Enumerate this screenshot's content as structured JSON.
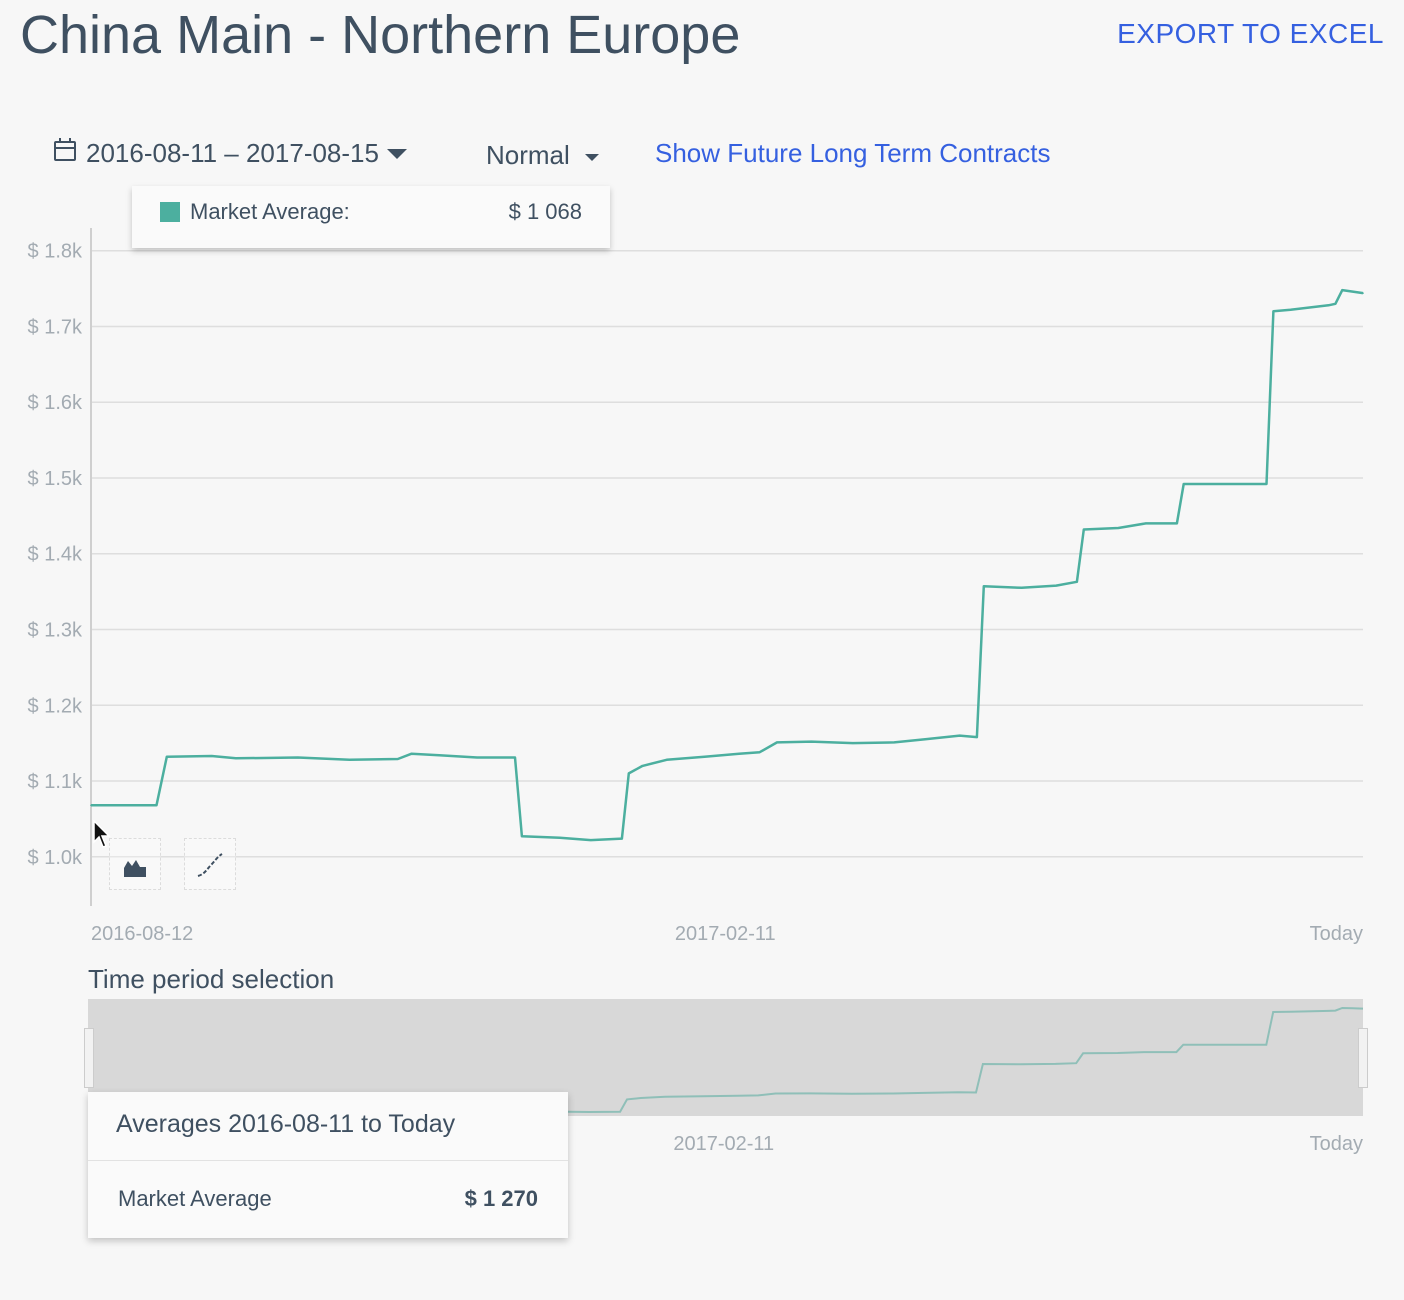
{
  "header": {
    "title": "China Main - Northern Europe",
    "export_label": "EXPORT TO EXCEL"
  },
  "controls": {
    "date_range": "2016-08-11 – 2017-08-15",
    "mode": "Normal",
    "future_link": "Show Future Long Term Contracts"
  },
  "tooltip": {
    "label": "Market Average:",
    "value": "$ 1 068",
    "color": "#4caf9f"
  },
  "navigator": {
    "label": "Time period selection",
    "x_labels": [
      "2017-02-11",
      "Today"
    ]
  },
  "averages": {
    "title": "Averages 2016-08-11 to Today",
    "label": "Market Average",
    "value": "$ 1 270"
  },
  "tools": [
    {
      "name": "area-chart-icon"
    },
    {
      "name": "line-chart-icon"
    }
  ],
  "chart_data": {
    "type": "line",
    "title": "",
    "xlabel": "",
    "ylabel": "",
    "x_range": [
      "2016-08-11",
      "2017-08-15"
    ],
    "ylim": [
      935,
      1830
    ],
    "grid": true,
    "line_color": "#4caf9f",
    "y_ticks": [
      {
        "value": 1000,
        "label": "$ 1.0k"
      },
      {
        "value": 1100,
        "label": "$ 1.1k"
      },
      {
        "value": 1200,
        "label": "$ 1.2k"
      },
      {
        "value": 1300,
        "label": "$ 1.3k"
      },
      {
        "value": 1400,
        "label": "$ 1.4k"
      },
      {
        "value": 1500,
        "label": "$ 1.5k"
      },
      {
        "value": 1600,
        "label": "$ 1.6k"
      },
      {
        "value": 1700,
        "label": "$ 1.7k"
      },
      {
        "value": 1800,
        "label": "$ 1.8k"
      }
    ],
    "x_ticks": [
      {
        "x": "2016-08-12",
        "label": "2016-08-12"
      },
      {
        "x": "2017-02-11",
        "label": "2017-02-11"
      },
      {
        "x": "2017-08-15",
        "label": "Today"
      }
    ],
    "series": [
      {
        "values": [
          [
            "2016-08-11",
            1068
          ],
          [
            "2016-08-30",
            1068
          ],
          [
            "2016-09-02",
            1132
          ],
          [
            "2016-09-15",
            1133
          ],
          [
            "2016-09-22",
            1130
          ],
          [
            "2016-10-10",
            1131
          ],
          [
            "2016-10-25",
            1128
          ],
          [
            "2016-11-08",
            1129
          ],
          [
            "2016-11-12",
            1136
          ],
          [
            "2016-11-20",
            1134
          ],
          [
            "2016-12-01",
            1131
          ],
          [
            "2016-12-12",
            1131
          ],
          [
            "2016-12-14",
            1027
          ],
          [
            "2016-12-25",
            1025
          ],
          [
            "2017-01-03",
            1022
          ],
          [
            "2017-01-12",
            1024
          ],
          [
            "2017-01-14",
            1110
          ],
          [
            "2017-01-18",
            1120
          ],
          [
            "2017-01-25",
            1128
          ],
          [
            "2017-02-05",
            1132
          ],
          [
            "2017-02-15",
            1136
          ],
          [
            "2017-02-21",
            1138
          ],
          [
            "2017-02-26",
            1151
          ],
          [
            "2017-03-08",
            1152
          ],
          [
            "2017-03-20",
            1150
          ],
          [
            "2017-04-01",
            1151
          ],
          [
            "2017-04-10",
            1155
          ],
          [
            "2017-04-20",
            1160
          ],
          [
            "2017-04-25",
            1158
          ],
          [
            "2017-04-27",
            1357
          ],
          [
            "2017-05-08",
            1355
          ],
          [
            "2017-05-18",
            1358
          ],
          [
            "2017-05-24",
            1363
          ],
          [
            "2017-05-26",
            1432
          ],
          [
            "2017-06-05",
            1434
          ],
          [
            "2017-06-13",
            1440
          ],
          [
            "2017-06-22",
            1440
          ],
          [
            "2017-06-24",
            1492
          ],
          [
            "2017-07-05",
            1492
          ],
          [
            "2017-07-18",
            1492
          ],
          [
            "2017-07-20",
            1720
          ],
          [
            "2017-07-25",
            1722
          ],
          [
            "2017-08-05",
            1728
          ],
          [
            "2017-08-07",
            1730
          ],
          [
            "2017-08-09",
            1748
          ],
          [
            "2017-08-12",
            1746
          ],
          [
            "2017-08-15",
            1744
          ]
        ]
      }
    ]
  }
}
